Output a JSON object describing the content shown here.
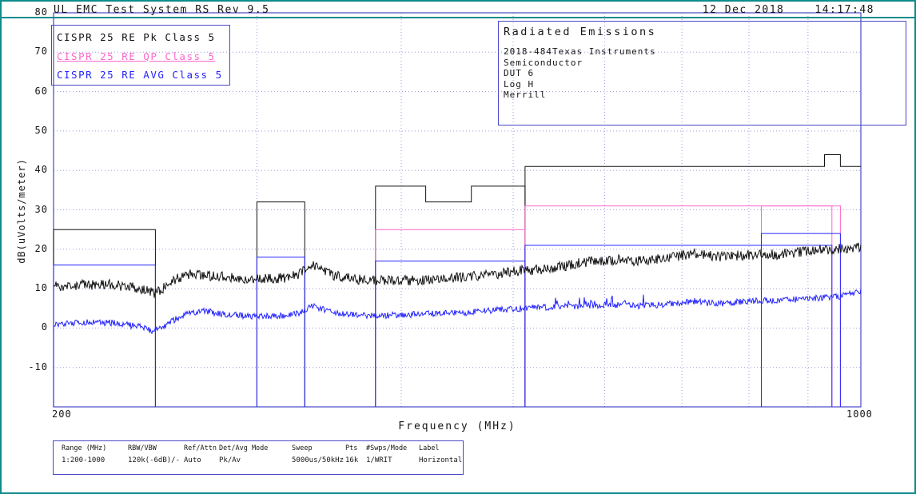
{
  "window": {
    "title": "UL EMC Test System RS Rev 9.5",
    "date": "12 Dec 2018",
    "time": "14:17:48"
  },
  "colors": {
    "teal": "#0f8b8b",
    "frame_blue": "#4848c8",
    "grid_blue": "#9a9ae2",
    "pk": "#111111",
    "qp": "#ff66cc",
    "avg": "#2424ff",
    "text": "#161616"
  },
  "legend": {
    "items": [
      {
        "id": "pk",
        "label": "CISPR 25 RE Pk Class 5",
        "underline": false
      },
      {
        "id": "qp",
        "label": "CISPR 25 RE QP Class 5",
        "underline": true
      },
      {
        "id": "avg",
        "label": "CISPR 25 RE AVG Class 5",
        "underline": false
      }
    ]
  },
  "info_box": {
    "title": "Radiated Emissions",
    "lines": [
      "2018-484Texas Instruments",
      "Semiconductor",
      "DUT 6",
      "Log H",
      "Merrill"
    ]
  },
  "settings_table": {
    "headers": [
      "Range (MHz)",
      "RBW/VBW",
      "Ref/Attn",
      "Det/Avg Mode",
      "Sweep",
      "Pts",
      "#Swps/Mode",
      "Label"
    ],
    "values": [
      "1:200-1000",
      "120k(-6dB)/-",
      "Auto",
      "Pk/Av",
      "5000us/50kHz",
      "16k",
      "1/WRIT",
      "Horizontal"
    ]
  },
  "chart_data": {
    "type": "line",
    "title": "",
    "xlabel": "Frequency (MHz)",
    "ylabel": "dB(uVolts/meter)",
    "x_scale": "log",
    "xlim": [
      200,
      1000
    ],
    "ylim": [
      -20,
      80
    ],
    "x_tick_labels": [
      "200",
      "1000"
    ],
    "y_ticks": [
      80,
      70,
      60,
      50,
      40,
      30,
      20,
      10,
      0,
      -10
    ],
    "x_gridlines_mhz": [
      300,
      400,
      500,
      600,
      700,
      800,
      900
    ],
    "grid": true,
    "legend_position": "top-left",
    "limit_lines": [
      {
        "name": "CISPR 25 RE Pk Class 5 limit",
        "color": "pk",
        "paths": [
          [
            [
              200,
              -20
            ],
            [
              200,
              25
            ],
            [
              245,
              25
            ],
            [
              245,
              -20
            ]
          ],
          [
            [
              300,
              -20
            ],
            [
              300,
              32
            ],
            [
              330,
              32
            ],
            [
              330,
              -20
            ]
          ],
          [
            [
              380,
              -20
            ],
            [
              380,
              36
            ],
            [
              420,
              36
            ],
            [
              420,
              32
            ],
            [
              460,
              32
            ],
            [
              460,
              36
            ],
            [
              512,
              36
            ],
            [
              512,
              -20
            ]
          ],
          [
            [
              512,
              -20
            ],
            [
              512,
              41
            ],
            [
              930,
              41
            ],
            [
              930,
              44
            ],
            [
              960,
              44
            ],
            [
              960,
              41
            ],
            [
              1000,
              41
            ]
          ]
        ]
      },
      {
        "name": "CISPR 25 RE QP Class 5 limit",
        "color": "qp",
        "paths": [
          [
            [
              380,
              -20
            ],
            [
              380,
              25
            ],
            [
              512,
              25
            ],
            [
              512,
              -20
            ]
          ],
          [
            [
              512,
              -20
            ],
            [
              512,
              31
            ],
            [
              944,
              31
            ],
            [
              944,
              -20
            ]
          ],
          [
            [
              820,
              -20
            ],
            [
              820,
              31
            ],
            [
              960,
              31
            ],
            [
              960,
              -20
            ]
          ]
        ]
      },
      {
        "name": "CISPR 25 RE AVG Class 5 limit",
        "color": "avg",
        "paths": [
          [
            [
              200,
              -20
            ],
            [
              200,
              16
            ],
            [
              245,
              16
            ],
            [
              245,
              -20
            ]
          ],
          [
            [
              300,
              -20
            ],
            [
              300,
              18
            ],
            [
              330,
              18
            ],
            [
              330,
              -20
            ]
          ],
          [
            [
              380,
              -20
            ],
            [
              380,
              17
            ],
            [
              512,
              17
            ],
            [
              512,
              -20
            ]
          ],
          [
            [
              512,
              -20
            ],
            [
              512,
              21
            ],
            [
              944,
              21
            ],
            [
              944,
              -20
            ]
          ],
          [
            [
              820,
              -20
            ],
            [
              820,
              24
            ],
            [
              960,
              24
            ],
            [
              960,
              -20
            ]
          ]
        ]
      }
    ],
    "traces": [
      {
        "name": "Pk measurement",
        "color": "pk",
        "noise_db": 1.3,
        "anchors": [
          [
            200,
            10.5
          ],
          [
            212,
            11
          ],
          [
            225,
            11
          ],
          [
            238,
            10
          ],
          [
            244,
            8.8
          ],
          [
            250,
            10.5
          ],
          [
            256,
            12.5
          ],
          [
            262,
            13.6
          ],
          [
            270,
            13.4
          ],
          [
            280,
            13
          ],
          [
            292,
            12.6
          ],
          [
            305,
            12.5
          ],
          [
            318,
            12.8
          ],
          [
            326,
            13.6
          ],
          [
            332,
            15
          ],
          [
            336,
            15.8
          ],
          [
            342,
            14.6
          ],
          [
            350,
            13.4
          ],
          [
            360,
            12.6
          ],
          [
            372,
            12.2
          ],
          [
            386,
            12
          ],
          [
            400,
            12
          ],
          [
            415,
            12.2
          ],
          [
            432,
            12.5
          ],
          [
            450,
            12.8
          ],
          [
            468,
            13.3
          ],
          [
            486,
            13.8
          ],
          [
            505,
            14.5
          ],
          [
            522,
            14.8
          ],
          [
            540,
            15.2
          ],
          [
            558,
            15.8
          ],
          [
            572,
            16.6
          ],
          [
            588,
            17
          ],
          [
            605,
            17.2
          ],
          [
            622,
            17.4
          ],
          [
            640,
            17
          ],
          [
            658,
            17.4
          ],
          [
            678,
            17.8
          ],
          [
            700,
            18.4
          ],
          [
            718,
            18.9
          ],
          [
            736,
            18.5
          ],
          [
            756,
            18.1
          ],
          [
            778,
            18.4
          ],
          [
            800,
            18.5
          ],
          [
            824,
            18.5
          ],
          [
            848,
            18.7
          ],
          [
            872,
            19.1
          ],
          [
            896,
            19.6
          ],
          [
            920,
            19.9
          ],
          [
            944,
            20
          ],
          [
            968,
            20.2
          ],
          [
            1000,
            20.4
          ]
        ]
      },
      {
        "name": "AVG measurement",
        "color": "avg",
        "noise_db": 0.8,
        "spike_regions": [
          {
            "from": 540,
            "to": 660,
            "extra_db": 2.2
          }
        ],
        "anchors": [
          [
            200,
            1
          ],
          [
            212,
            1.5
          ],
          [
            225,
            1.3
          ],
          [
            238,
            0.3
          ],
          [
            244,
            -0.8
          ],
          [
            250,
            0.6
          ],
          [
            256,
            2.6
          ],
          [
            262,
            4
          ],
          [
            270,
            4.3
          ],
          [
            280,
            3.6
          ],
          [
            292,
            3.1
          ],
          [
            305,
            3
          ],
          [
            318,
            3.1
          ],
          [
            326,
            3.8
          ],
          [
            332,
            5
          ],
          [
            336,
            5.7
          ],
          [
            342,
            4.8
          ],
          [
            350,
            3.9
          ],
          [
            360,
            3.4
          ],
          [
            372,
            3.2
          ],
          [
            386,
            3.2
          ],
          [
            400,
            3.3
          ],
          [
            415,
            3.5
          ],
          [
            432,
            3.7
          ],
          [
            450,
            3.9
          ],
          [
            468,
            4.2
          ],
          [
            486,
            4.6
          ],
          [
            505,
            4.9
          ],
          [
            522,
            5.2
          ],
          [
            540,
            5.3
          ],
          [
            558,
            5.4
          ],
          [
            572,
            5.6
          ],
          [
            588,
            5.8
          ],
          [
            605,
            5.9
          ],
          [
            622,
            5.8
          ],
          [
            640,
            5.6
          ],
          [
            658,
            5.8
          ],
          [
            678,
            6
          ],
          [
            700,
            6.5
          ],
          [
            718,
            6.8
          ],
          [
            736,
            6.4
          ],
          [
            756,
            6.2
          ],
          [
            778,
            6.5
          ],
          [
            800,
            6.9
          ],
          [
            824,
            7
          ],
          [
            848,
            6.9
          ],
          [
            872,
            7.2
          ],
          [
            896,
            7.4
          ],
          [
            920,
            7.6
          ],
          [
            944,
            7.8
          ],
          [
            968,
            8.3
          ],
          [
            1000,
            9.2
          ]
        ]
      }
    ]
  }
}
